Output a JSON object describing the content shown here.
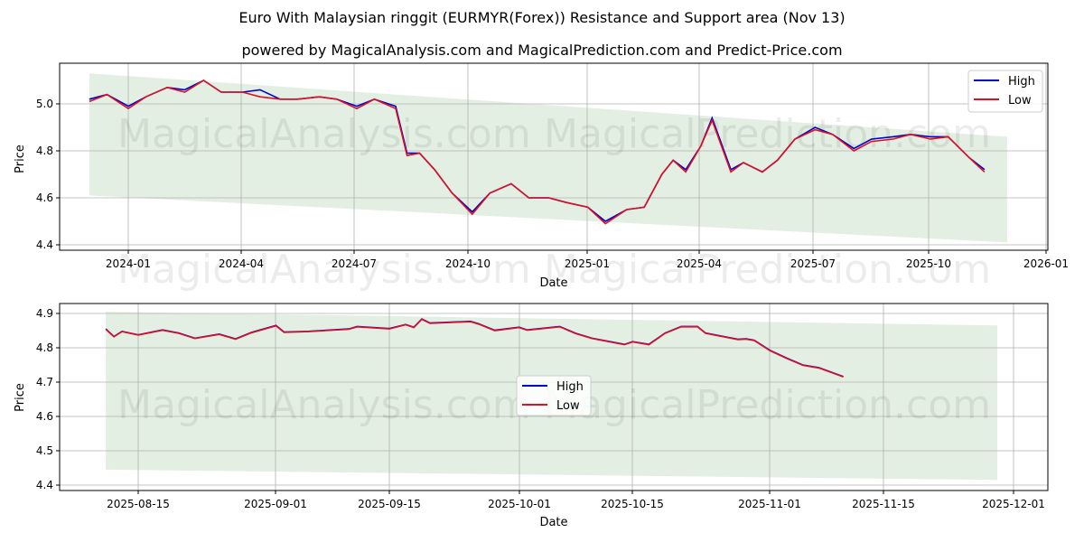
{
  "header": {
    "title": "Euro With Malaysian ringgit (EURMYR(Forex)) Resistance and Support area (Nov 13)",
    "subtitle": "powered by MagicalAnalysis.com and MagicalPrediction.com and Predict-Price.com"
  },
  "watermarks": [
    "MagicalAnalysis.com",
    "MagicalPrediction.com"
  ],
  "colors": {
    "high": "#0000cc",
    "low": "#dd1122",
    "band": "#e3efe3",
    "grid": "#b0b0b0"
  },
  "chart_data": [
    {
      "type": "line",
      "title": "",
      "xlabel": "Date",
      "ylabel": "Price",
      "ylim": [
        4.38,
        5.17
      ],
      "yticks": [
        "4.4",
        "4.6",
        "4.8",
        "5.0"
      ],
      "xticks": [
        "2024-01",
        "2024-04",
        "2024-07",
        "2024-10",
        "2025-01",
        "2025-04",
        "2025-07",
        "2025-10",
        "2026-01"
      ],
      "grid": true,
      "legend": {
        "position": "upper right",
        "entries": [
          "High",
          "Low"
        ]
      },
      "band": {
        "x_start": "2023-12-01",
        "x_end": "2025-12-01",
        "upper": [
          5.13,
          4.86
        ],
        "lower": [
          4.61,
          4.41
        ]
      },
      "x": [
        "2023-12-01",
        "2023-12-15",
        "2024-01-01",
        "2024-01-15",
        "2024-02-01",
        "2024-02-15",
        "2024-03-01",
        "2024-03-15",
        "2024-04-01",
        "2024-04-15",
        "2024-05-01",
        "2024-05-15",
        "2024-06-01",
        "2024-06-15",
        "2024-07-01",
        "2024-07-15",
        "2024-08-01",
        "2024-08-10",
        "2024-08-20",
        "2024-09-01",
        "2024-09-15",
        "2024-10-01",
        "2024-10-15",
        "2024-11-01",
        "2024-11-15",
        "2024-12-01",
        "2024-12-15",
        "2025-01-01",
        "2025-01-15",
        "2025-02-01",
        "2025-02-15",
        "2025-03-01",
        "2025-03-10",
        "2025-03-20",
        "2025-04-01",
        "2025-04-10",
        "2025-04-25",
        "2025-05-05",
        "2025-05-20",
        "2025-06-01",
        "2025-06-15",
        "2025-07-01",
        "2025-07-15",
        "2025-08-01",
        "2025-08-15",
        "2025-09-01",
        "2025-09-15",
        "2025-10-01",
        "2025-10-15",
        "2025-11-01",
        "2025-11-13"
      ],
      "series": [
        {
          "name": "High",
          "values": [
            5.02,
            5.04,
            4.99,
            5.03,
            5.07,
            5.06,
            5.1,
            5.05,
            5.05,
            5.06,
            5.02,
            5.02,
            5.03,
            5.02,
            4.99,
            5.02,
            4.99,
            4.79,
            4.79,
            4.72,
            4.62,
            4.54,
            4.62,
            4.66,
            4.6,
            4.6,
            4.58,
            4.56,
            4.5,
            4.55,
            4.56,
            4.7,
            4.76,
            4.72,
            4.82,
            4.94,
            4.72,
            4.75,
            4.71,
            4.76,
            4.85,
            4.9,
            4.87,
            4.81,
            4.85,
            4.86,
            4.87,
            4.86,
            4.86,
            4.77,
            4.72
          ]
        },
        {
          "name": "Low",
          "values": [
            5.01,
            5.04,
            4.98,
            5.03,
            5.07,
            5.05,
            5.1,
            5.05,
            5.05,
            5.03,
            5.02,
            5.02,
            5.03,
            5.02,
            4.98,
            5.02,
            4.98,
            4.78,
            4.79,
            4.72,
            4.62,
            4.53,
            4.62,
            4.66,
            4.6,
            4.6,
            4.58,
            4.56,
            4.49,
            4.55,
            4.56,
            4.7,
            4.76,
            4.71,
            4.82,
            4.93,
            4.71,
            4.75,
            4.71,
            4.76,
            4.85,
            4.89,
            4.87,
            4.8,
            4.84,
            4.85,
            4.87,
            4.85,
            4.86,
            4.77,
            4.71
          ]
        }
      ]
    },
    {
      "type": "line",
      "title": "",
      "xlabel": "Date",
      "ylabel": "Price",
      "ylim": [
        4.37,
        4.93
      ],
      "yticks": [
        "4.4",
        "4.5",
        "4.6",
        "4.7",
        "4.8",
        "4.9"
      ],
      "xticks": [
        "2025-08-15",
        "2025-09-01",
        "2025-09-15",
        "2025-10-01",
        "2025-10-15",
        "2025-11-01",
        "2025-11-15",
        "2025-12-01"
      ],
      "grid": true,
      "legend": {
        "position": "center",
        "entries": [
          "High",
          "Low"
        ]
      },
      "band": {
        "x_start": "2025-08-11",
        "x_end": "2025-11-29",
        "upper": [
          4.905,
          4.865
        ],
        "lower": [
          4.445,
          4.415
        ]
      },
      "x": [
        "2025-08-11",
        "2025-08-12",
        "2025-08-13",
        "2025-08-15",
        "2025-08-18",
        "2025-08-20",
        "2025-08-22",
        "2025-08-25",
        "2025-08-27",
        "2025-08-29",
        "2025-09-01",
        "2025-09-02",
        "2025-09-05",
        "2025-09-10",
        "2025-09-11",
        "2025-09-15",
        "2025-09-17",
        "2025-09-18",
        "2025-09-19",
        "2025-09-20",
        "2025-09-25",
        "2025-09-26",
        "2025-09-28",
        "2025-10-01",
        "2025-10-02",
        "2025-10-06",
        "2025-10-08",
        "2025-10-10",
        "2025-10-14",
        "2025-10-15",
        "2025-10-17",
        "2025-10-19",
        "2025-10-21",
        "2025-10-23",
        "2025-10-24",
        "2025-10-28",
        "2025-10-29",
        "2025-10-30",
        "2025-11-01",
        "2025-11-03",
        "2025-11-05",
        "2025-11-07",
        "2025-11-10"
      ],
      "series": [
        {
          "name": "High",
          "values": [
            4.855,
            4.833,
            4.848,
            4.838,
            4.852,
            4.843,
            4.828,
            4.84,
            4.826,
            4.845,
            4.865,
            4.846,
            4.848,
            4.855,
            4.862,
            4.856,
            4.868,
            4.86,
            4.884,
            4.872,
            4.877,
            4.87,
            4.851,
            4.86,
            4.852,
            4.862,
            4.842,
            4.828,
            4.81,
            4.818,
            4.81,
            4.843,
            4.862,
            4.862,
            4.843,
            4.825,
            4.826,
            4.822,
            4.792,
            4.77,
            4.75,
            4.742,
            4.716
          ]
        },
        {
          "name": "Low",
          "values": [
            4.854,
            4.832,
            4.847,
            4.837,
            4.851,
            4.842,
            4.827,
            4.839,
            4.825,
            4.844,
            4.864,
            4.845,
            4.847,
            4.854,
            4.861,
            4.855,
            4.867,
            4.859,
            4.883,
            4.871,
            4.876,
            4.869,
            4.85,
            4.859,
            4.851,
            4.861,
            4.841,
            4.827,
            4.809,
            4.817,
            4.809,
            4.842,
            4.861,
            4.861,
            4.842,
            4.824,
            4.825,
            4.821,
            4.791,
            4.769,
            4.749,
            4.741,
            4.715
          ]
        }
      ]
    }
  ]
}
